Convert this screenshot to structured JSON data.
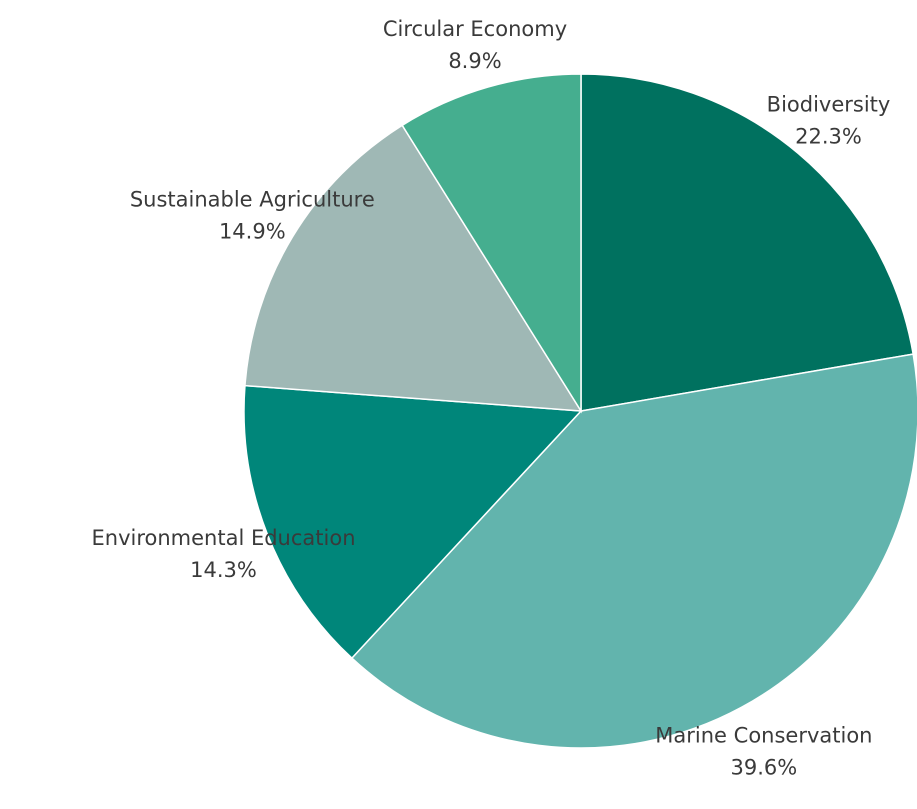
{
  "chart_data": {
    "type": "pie",
    "title": "",
    "start_angle_deg": 0,
    "direction": "clockwise",
    "slices": [
      {
        "label": "Biodiversity",
        "value": 22.3,
        "value_label": "22.3%",
        "color": "#00715f"
      },
      {
        "label": "Marine Conservation",
        "value": 39.6,
        "value_label": "39.6%",
        "color": "#62b4ad"
      },
      {
        "label": "Environmental Education",
        "value": 14.3,
        "value_label": "14.3%",
        "color": "#00867a"
      },
      {
        "label": "Sustainable Agriculture",
        "value": 14.9,
        "value_label": "14.9%",
        "color": "#9fb8b5"
      },
      {
        "label": "Circular Economy",
        "value": 8.9,
        "value_label": "8.9%",
        "color": "#45ae8f"
      }
    ]
  }
}
